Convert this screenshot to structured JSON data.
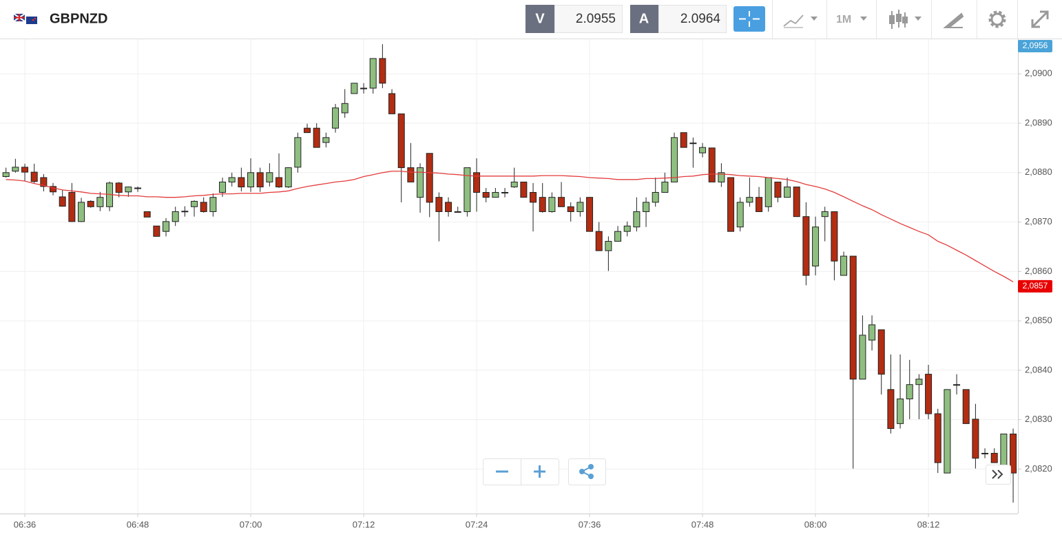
{
  "header": {
    "symbol": "GBPNZD",
    "bid_label": "V",
    "bid": 2.0955,
    "ask_label": "A",
    "ask": 2.0964,
    "timeframe": "1M"
  },
  "chart_data": {
    "type": "candlestick",
    "categories": [
      null,
      null,
      "06:36",
      null,
      null,
      null,
      null,
      null,
      null,
      null,
      null,
      null,
      null,
      null,
      "06:48",
      null,
      null,
      null,
      null,
      null,
      null,
      null,
      null,
      null,
      null,
      null,
      "07:00",
      null,
      null,
      null,
      null,
      null,
      null,
      null,
      null,
      null,
      null,
      null,
      "07:12",
      null,
      null,
      null,
      null,
      null,
      null,
      null,
      null,
      null,
      null,
      null,
      "07:24",
      null,
      null,
      null,
      null,
      null,
      null,
      null,
      null,
      null,
      null,
      null,
      "07:36",
      null,
      null,
      null,
      null,
      null,
      null,
      null,
      null,
      null,
      null,
      null,
      "07:48",
      null,
      null,
      null,
      null,
      null,
      null,
      null,
      null,
      null,
      null,
      null,
      "08:00",
      null,
      null,
      null,
      null,
      null,
      null,
      null,
      null,
      null,
      null,
      null,
      "08:12",
      null,
      null,
      null,
      null,
      null,
      null,
      null,
      null,
      null
    ],
    "open": [
      2.08792,
      2.08803,
      2.08811,
      2.08801,
      2.0879,
      2.08772,
      2.08751,
      2.0876,
      2.08701,
      2.08742,
      2.08731,
      2.08731,
      2.08779,
      2.08761,
      2.08769,
      2.08721,
      2.08692,
      2.08681,
      2.08701,
      2.08721,
      2.08731,
      2.0874,
      2.08721,
      2.0876,
      2.08781,
      2.0879,
      2.08771,
      2.088,
      2.08781,
      2.0879,
      2.08771,
      2.08811,
      2.0889,
      2.0889,
      2.08861,
      2.0889,
      2.08921,
      2.0896,
      2.08971,
      2.08971,
      2.09031,
      2.0896,
      2.08919,
      2.0881,
      2.0875,
      2.08839,
      2.0875,
      2.0874,
      2.08721,
      2.08721,
      2.088,
      2.0876,
      2.0875,
      2.0876,
      2.08771,
      2.08781,
      2.0876,
      2.0875,
      2.08721,
      2.0875,
      2.08731,
      2.08721,
      2.0875,
      2.08681,
      2.08642,
      2.08661,
      2.08681,
      2.0869,
      2.08721,
      2.0874,
      2.0876,
      2.08781,
      2.08881,
      2.0886,
      2.0884,
      2.0885,
      2.08781,
      2.0879,
      2.0869,
      2.0874,
      2.0875,
      2.08731,
      2.08781,
      2.0875,
      2.08771,
      2.08711,
      2.08611,
      2.08711,
      2.08721,
      2.08592,
      2.08631,
      2.08382,
      2.08461,
      2.08482,
      2.08361,
      2.08292,
      2.08342,
      2.08371,
      2.08392,
      2.08312,
      2.08192,
      2.08371,
      2.08361,
      2.08301,
      2.08232,
      2.08232,
      2.08192,
      2.08271
    ],
    "high": [
      2.0881,
      2.08828,
      2.08818,
      2.08818,
      2.08797,
      2.08779,
      2.08765,
      2.08779,
      2.08749,
      2.08744,
      2.08761,
      2.08782,
      2.08781,
      2.08772,
      2.08772,
      2.08721,
      2.08692,
      2.08708,
      2.08731,
      2.08732,
      2.08744,
      2.0875,
      2.08758,
      2.0879,
      2.088,
      2.0881,
      2.08829,
      2.0881,
      2.08819,
      2.08839,
      2.08811,
      2.08881,
      2.08899,
      2.089,
      2.08881,
      2.08939,
      2.08969,
      2.08981,
      2.08981,
      2.09031,
      2.0906,
      2.08969,
      2.08919,
      2.0886,
      2.08819,
      2.08839,
      2.0876,
      2.0875,
      2.08731,
      2.0881,
      2.08829,
      2.08769,
      2.08769,
      2.08769,
      2.0881,
      2.08781,
      2.08779,
      2.08779,
      2.0876,
      2.08781,
      2.0874,
      2.0875,
      2.0875,
      2.087,
      2.08671,
      2.08692,
      2.08701,
      2.0875,
      2.0875,
      2.0879,
      2.088,
      2.08881,
      2.08881,
      2.08871,
      2.0886,
      2.0885,
      2.08819,
      2.0879,
      2.0875,
      2.0879,
      2.08771,
      2.0879,
      2.08781,
      2.0879,
      2.08771,
      2.0874,
      2.08711,
      2.08731,
      2.08721,
      2.0864,
      2.08631,
      2.08511,
      2.08511,
      2.08482,
      2.08432,
      2.08432,
      2.08421,
      2.08392,
      2.08411,
      2.08322,
      2.08361,
      2.08392,
      2.08361,
      2.08332,
      2.08242,
      2.08242,
      2.08271,
      2.08282
    ],
    "low": [
      2.0879,
      2.088,
      2.08783,
      2.08779,
      2.08762,
      2.08754,
      2.08731,
      2.087,
      2.087,
      2.08729,
      2.08722,
      2.08722,
      2.0875,
      2.08751,
      2.08761,
      2.0871,
      2.08671,
      2.08671,
      2.08692,
      2.08711,
      2.08711,
      2.08719,
      2.08711,
      2.08751,
      2.08772,
      2.08762,
      2.08761,
      2.08761,
      2.08772,
      2.08769,
      2.08769,
      2.088,
      2.08881,
      2.08851,
      2.08851,
      2.08881,
      2.08911,
      2.0896,
      2.0896,
      2.0896,
      2.08971,
      2.08919,
      2.0874,
      2.08781,
      2.08719,
      2.0871,
      2.08661,
      2.08711,
      2.08721,
      2.08711,
      2.08721,
      2.0874,
      2.0875,
      2.0875,
      2.08769,
      2.0875,
      2.08681,
      2.08719,
      2.08719,
      2.08731,
      2.08701,
      2.08711,
      2.08681,
      2.08642,
      2.08601,
      2.08661,
      2.08671,
      2.08681,
      2.0869,
      2.08731,
      2.0876,
      2.08781,
      2.08851,
      2.0881,
      2.08831,
      2.08781,
      2.08771,
      2.08681,
      2.08681,
      2.08731,
      2.08721,
      2.08721,
      2.0874,
      2.0875,
      2.08711,
      2.08572,
      2.08592,
      2.08661,
      2.08582,
      2.08592,
      2.08201,
      2.08382,
      2.0844,
      2.08351,
      2.08272,
      2.08282,
      2.08301,
      2.08301,
      2.08301,
      2.08192,
      2.08192,
      2.08351,
      2.08292,
      2.08201,
      2.08222,
      2.08213,
      2.08192,
      2.08132
    ],
    "close": [
      2.088,
      2.08811,
      2.08801,
      2.08782,
      2.08772,
      2.08761,
      2.08732,
      2.08701,
      2.0874,
      2.08731,
      2.0875,
      2.08779,
      2.0876,
      2.08771,
      2.08769,
      2.0871,
      2.08671,
      2.08701,
      2.08721,
      2.08722,
      2.08742,
      2.08721,
      2.0875,
      2.08781,
      2.0879,
      2.08771,
      2.088,
      2.08771,
      2.088,
      2.08771,
      2.0881,
      2.08871,
      2.08881,
      2.08851,
      2.08871,
      2.08931,
      2.0894,
      2.08981,
      2.08971,
      2.09031,
      2.08981,
      2.08919,
      2.0881,
      2.08781,
      2.0881,
      2.0874,
      2.08721,
      2.08721,
      2.08721,
      2.0881,
      2.0876,
      2.0875,
      2.0876,
      2.0876,
      2.08781,
      2.0875,
      2.0874,
      2.08721,
      2.0875,
      2.08731,
      2.08721,
      2.0874,
      2.08681,
      2.08642,
      2.08661,
      2.08681,
      2.08692,
      2.08721,
      2.0874,
      2.0876,
      2.08781,
      2.08871,
      2.08851,
      2.0886,
      2.08851,
      2.08781,
      2.088,
      2.08681,
      2.0874,
      2.0875,
      2.08721,
      2.0879,
      2.0875,
      2.08771,
      2.08711,
      2.08592,
      2.0869,
      2.08721,
      2.08621,
      2.08631,
      2.08382,
      2.08471,
      2.08492,
      2.08392,
      2.08282,
      2.08342,
      2.08371,
      2.08382,
      2.08312,
      2.08213,
      2.08361,
      2.08371,
      2.08292,
      2.08222,
      2.08232,
      2.08213,
      2.08271,
      2.08192
    ],
    "up_color": "#8fbf80",
    "down_color": "#b22d12",
    "moving_average": {
      "color": "#e33b3b",
      "values": [
        2.08786,
        2.08785,
        2.08783,
        2.08778,
        2.08774,
        2.08769,
        2.08765,
        2.08763,
        2.08761,
        2.08758,
        2.08757,
        2.08756,
        2.08754,
        2.08753,
        2.08753,
        2.08751,
        2.08751,
        2.0875,
        2.0875,
        2.08751,
        2.08753,
        2.08754,
        2.08756,
        2.08757,
        2.08757,
        2.08758,
        2.08758,
        2.08758,
        2.0876,
        2.08761,
        2.08763,
        2.08768,
        2.08772,
        2.08775,
        2.08778,
        2.08781,
        2.08783,
        2.08786,
        2.08792,
        2.08796,
        2.088,
        2.08803,
        2.08803,
        2.08801,
        2.08801,
        2.088,
        2.08799,
        2.08797,
        2.08796,
        2.08794,
        2.08793,
        2.08793,
        2.08793,
        2.08793,
        2.08793,
        2.08793,
        2.08793,
        2.08794,
        2.08794,
        2.08794,
        2.08793,
        2.08792,
        2.0879,
        2.08789,
        2.08788,
        2.08786,
        2.08786,
        2.08786,
        2.08788,
        2.08788,
        2.08789,
        2.0879,
        2.08792,
        2.08793,
        2.08796,
        2.08797,
        2.08797,
        2.08796,
        2.08794,
        2.08793,
        2.08792,
        2.0879,
        2.08788,
        2.08786,
        2.08782,
        2.08776,
        2.08772,
        2.08767,
        2.0876,
        2.08751,
        2.08742,
        2.08733,
        2.08725,
        2.08715,
        2.08706,
        2.08697,
        2.08689,
        2.08681,
        2.08674,
        2.08661,
        2.08653,
        2.08643,
        2.08633,
        2.08622,
        2.08611,
        2.086,
        2.0859,
        2.08579
      ]
    },
    "ylim": [
      2.0811,
      2.0907
    ],
    "yticks": [
      {
        "value": 2.082,
        "label": "2,0820"
      },
      {
        "value": 2.083,
        "label": "2,0830"
      },
      {
        "value": 2.084,
        "label": "2,0840"
      },
      {
        "value": 2.085,
        "label": "2,0850"
      },
      {
        "value": 2.086,
        "label": "2,0860"
      },
      {
        "value": 2.087,
        "label": "2,0870"
      },
      {
        "value": 2.088,
        "label": "2,0880"
      },
      {
        "value": 2.089,
        "label": "2,0890"
      },
      {
        "value": 2.09,
        "label": "2,0900"
      }
    ],
    "price_tags": [
      {
        "value": 2.0956,
        "label": "2,0956",
        "color": "#4aa3d8"
      },
      {
        "value": 2.0857,
        "label": "2,0857",
        "color": "#e80000"
      }
    ],
    "grid": true
  }
}
